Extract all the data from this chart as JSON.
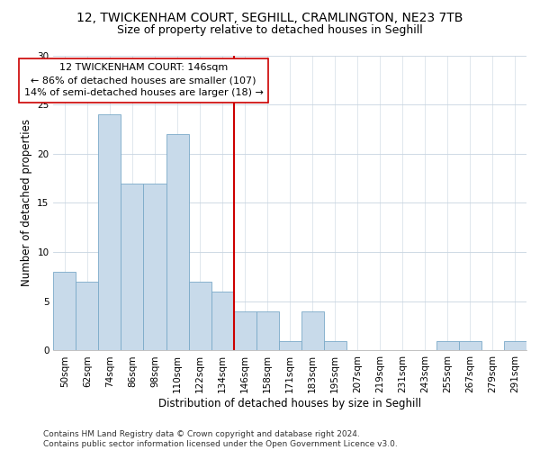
{
  "title1": "12, TWICKENHAM COURT, SEGHILL, CRAMLINGTON, NE23 7TB",
  "title2": "Size of property relative to detached houses in Seghill",
  "xlabel": "Distribution of detached houses by size in Seghill",
  "ylabel": "Number of detached properties",
  "categories": [
    "50sqm",
    "62sqm",
    "74sqm",
    "86sqm",
    "98sqm",
    "110sqm",
    "122sqm",
    "134sqm",
    "146sqm",
    "158sqm",
    "171sqm",
    "183sqm",
    "195sqm",
    "207sqm",
    "219sqm",
    "231sqm",
    "243sqm",
    "255sqm",
    "267sqm",
    "279sqm",
    "291sqm"
  ],
  "values": [
    8,
    7,
    24,
    17,
    17,
    22,
    7,
    6,
    4,
    4,
    1,
    4,
    1,
    0,
    0,
    0,
    0,
    1,
    1,
    0,
    1
  ],
  "bar_color": "#c8daea",
  "bar_edge_color": "#7aaac8",
  "property_line_idx": 8,
  "property_line_color": "#cc0000",
  "annotation_line1": "12 TWICKENHAM COURT: 146sqm",
  "annotation_line2": "← 86% of detached houses are smaller (107)",
  "annotation_line3": "14% of semi-detached houses are larger (18) →",
  "annotation_box_color": "#ffffff",
  "annotation_box_edge": "#cc0000",
  "ylim": [
    0,
    30
  ],
  "yticks": [
    0,
    5,
    10,
    15,
    20,
    25,
    30
  ],
  "background_color": "#ffffff",
  "plot_background": "#ffffff",
  "grid_color": "#c8d4e0",
  "title1_fontsize": 10,
  "title2_fontsize": 9,
  "xlabel_fontsize": 8.5,
  "ylabel_fontsize": 8.5,
  "tick_fontsize": 7.5,
  "annot_fontsize": 8,
  "footer_fontsize": 6.5,
  "footer": "Contains HM Land Registry data © Crown copyright and database right 2024.\nContains public sector information licensed under the Open Government Licence v3.0."
}
